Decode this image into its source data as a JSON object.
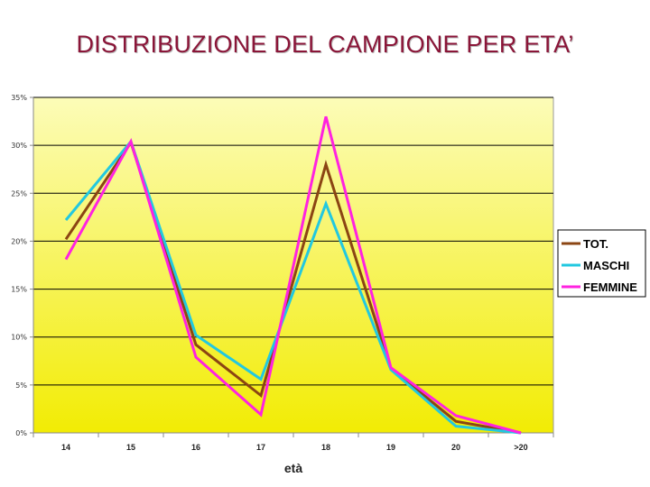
{
  "title": "DISTRIBUZIONE DEL CAMPIONE PER ETA’",
  "chart_data": {
    "type": "line",
    "title": "DISTRIBUZIONE DEL CAMPIONE PER ETA’",
    "xlabel": "età",
    "ylabel": "",
    "categories": [
      "14",
      "15",
      "16",
      "17",
      "18",
      "19",
      "20",
      ">20"
    ],
    "y_ticks": [
      "0%",
      "5%",
      "10%",
      "15%",
      "20%",
      "25%",
      "30%",
      "35%"
    ],
    "ylim": [
      0,
      35
    ],
    "grid": "horizontal",
    "legend_position": "right",
    "background": "yellow gradient",
    "series": [
      {
        "name": "TOT.",
        "color": "#8b4513",
        "values": [
          20.2,
          30.3,
          9.2,
          3.9,
          28.0,
          6.7,
          1.2,
          0
        ]
      },
      {
        "name": "MASCHI",
        "color": "#22c8e0",
        "values": [
          22.2,
          30.4,
          10.2,
          5.6,
          23.9,
          6.6,
          0.7,
          0
        ]
      },
      {
        "name": "FEMMINE",
        "color": "#ff22e0",
        "values": [
          18.1,
          30.4,
          7.9,
          1.9,
          33.0,
          6.8,
          1.8,
          0
        ]
      }
    ]
  }
}
